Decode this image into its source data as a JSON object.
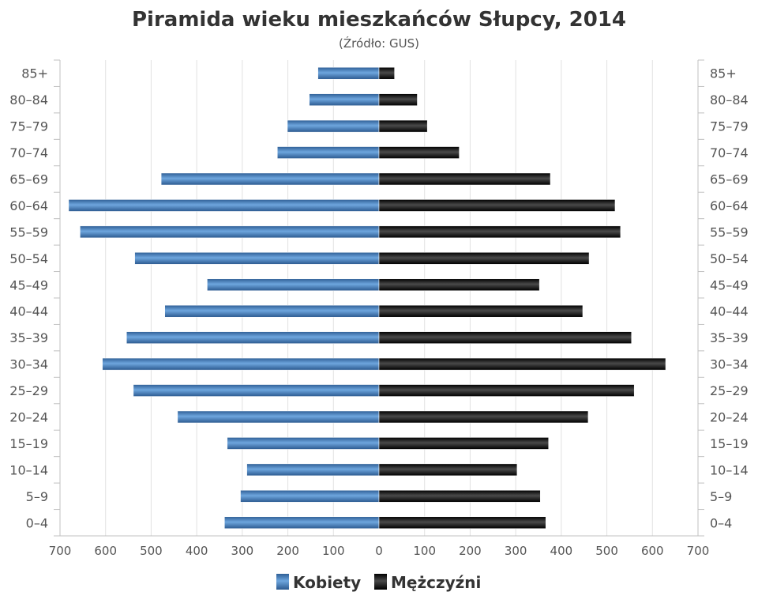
{
  "chart_data": {
    "type": "bar",
    "orientation": "horizontal",
    "title": "Piramida wieku mieszkańców Słupcy, 2014",
    "subtitle": "(Źródło: GUS)",
    "categories": [
      "0–4",
      "5–9",
      "10–14",
      "15–19",
      "20–24",
      "25–29",
      "30–34",
      "35–39",
      "40–44",
      "45–49",
      "50–54",
      "55–59",
      "60–64",
      "65–69",
      "70–74",
      "75–79",
      "80–84",
      "85+"
    ],
    "series": [
      {
        "name": "Kobiety",
        "side": "left",
        "color": "#3a74b4",
        "values": [
          339,
          304,
          290,
          333,
          442,
          539,
          607,
          554,
          470,
          377,
          536,
          656,
          681,
          478,
          223,
          201,
          153,
          134
        ]
      },
      {
        "name": "Mężczyźni",
        "side": "right",
        "color": "#111111",
        "values": [
          366,
          354,
          303,
          372,
          459,
          560,
          629,
          554,
          447,
          352,
          461,
          530,
          518,
          376,
          176,
          106,
          84,
          34
        ]
      }
    ],
    "xlim": [
      -700,
      700
    ],
    "xticks": [
      "700",
      "600",
      "500",
      "400",
      "300",
      "200",
      "100",
      "0",
      "100",
      "200",
      "300",
      "400",
      "500",
      "600",
      "700"
    ],
    "grid": true,
    "legend_position": "bottom"
  }
}
